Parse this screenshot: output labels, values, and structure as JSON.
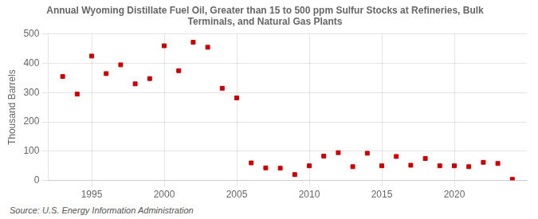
{
  "chart_data": {
    "type": "scatter",
    "title": "Annual Wyoming Distillate Fuel Oil, Greater than 15 to 500 ppm Sulfur Stocks at Refineries, Bulk\nTerminals, and Natural Gas Plants",
    "ylabel": "Thousand Barrels",
    "annotation": "Source: U.S. Energy Information Administration",
    "x": [
      1993,
      1994,
      1995,
      1996,
      1997,
      1998,
      1999,
      2000,
      2001,
      2002,
      2003,
      2004,
      2005,
      2006,
      2007,
      2008,
      2009,
      2010,
      2011,
      2012,
      2013,
      2014,
      2015,
      2016,
      2017,
      2018,
      2019,
      2020,
      2021,
      2022,
      2023,
      2024
    ],
    "values": [
      355,
      295,
      425,
      365,
      395,
      330,
      348,
      460,
      375,
      472,
      455,
      315,
      282,
      60,
      43,
      42,
      20,
      50,
      83,
      95,
      47,
      93,
      50,
      82,
      52,
      75,
      50,
      50,
      47,
      62,
      58,
      4
    ],
    "color": "#cc0000",
    "marker": "square",
    "xlim": [
      1992,
      2025
    ],
    "xticks": [
      1995,
      2000,
      2005,
      2010,
      2015,
      2020
    ],
    "ylim": [
      0,
      500
    ],
    "yticks": [
      0,
      100,
      200,
      300,
      400,
      500
    ],
    "grid": true
  }
}
